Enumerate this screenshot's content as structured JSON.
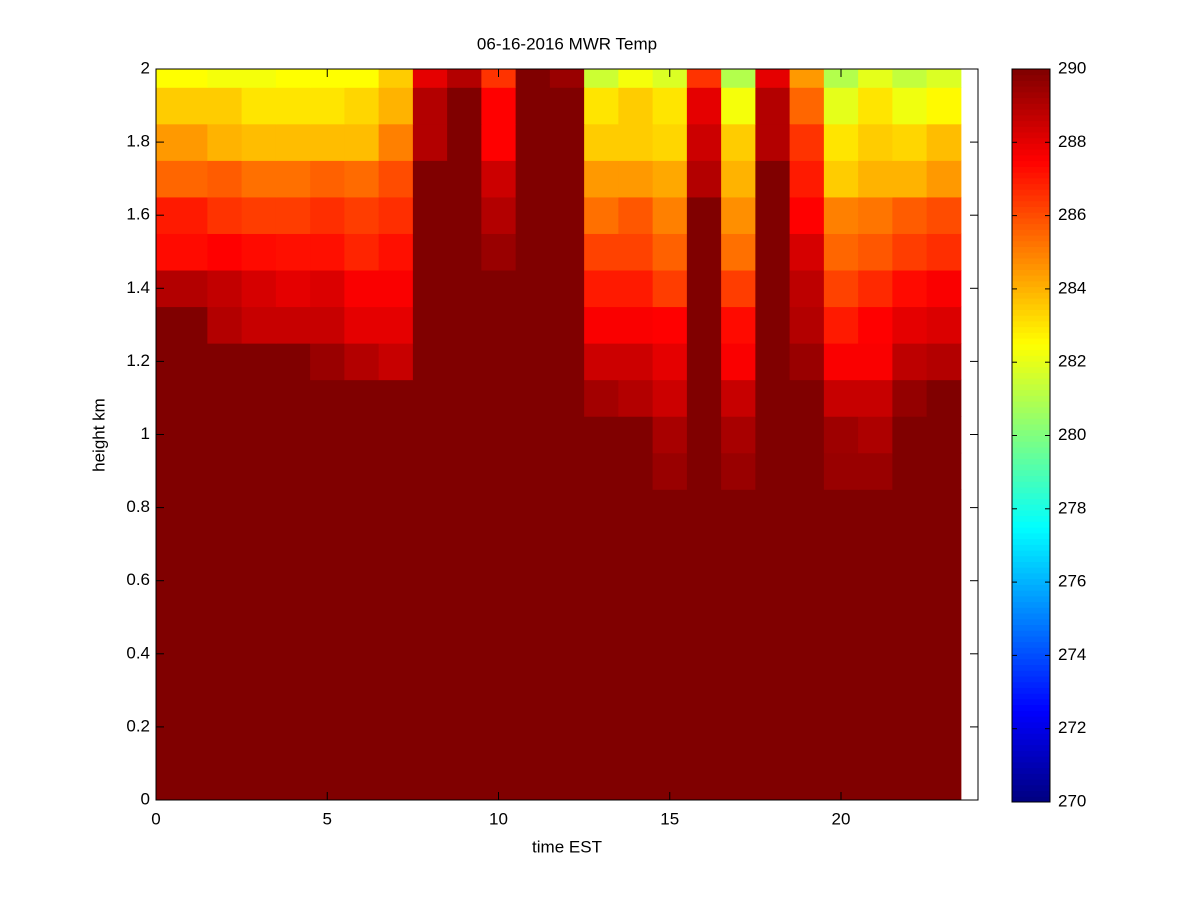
{
  "chart_data": {
    "type": "heatmap",
    "title": "06-16-2016 MWR Temp",
    "xlabel": "time EST",
    "ylabel": "height km",
    "colormap": "jet",
    "x_edges": [
      0,
      1.5,
      2.5,
      3.5,
      4.5,
      5.5,
      6.5,
      7.5,
      8.5,
      9.5,
      10.5,
      11.5,
      12.5,
      13.5,
      14.5,
      15.5,
      16.5,
      17.5,
      18.5,
      19.5,
      20.5,
      21.5,
      22.5,
      23.5
    ],
    "y_edges": [
      0,
      0.85,
      0.95,
      1.05,
      1.15,
      1.25,
      1.35,
      1.45,
      1.55,
      1.65,
      1.75,
      1.85,
      1.95,
      2
    ],
    "values": [
      [
        290,
        290,
        290,
        290,
        290,
        290,
        290,
        290,
        290,
        290,
        290,
        290,
        290,
        290,
        290,
        290,
        290,
        290,
        290,
        290,
        290,
        290,
        290
      ],
      [
        290,
        290,
        290,
        290,
        290,
        290,
        290,
        290,
        290,
        290,
        290,
        290,
        290,
        290,
        289.5,
        290,
        289.5,
        290,
        290,
        289.5,
        289.5,
        290,
        290
      ],
      [
        290,
        290,
        290,
        290,
        290,
        290,
        290,
        290,
        290,
        290,
        290,
        290,
        290,
        290,
        289.2,
        290,
        289.2,
        290,
        290,
        289.4,
        289.1,
        290,
        290
      ],
      [
        290,
        290,
        290,
        290,
        290,
        290,
        290,
        290,
        290,
        290,
        290,
        290,
        289.3,
        289,
        288.5,
        290,
        288.6,
        290,
        290,
        288.6,
        288.6,
        289.6,
        290
      ],
      [
        290,
        290,
        290,
        290,
        289.5,
        289,
        288.6,
        290,
        290,
        290,
        290,
        290,
        288.5,
        288.5,
        288,
        290,
        287.6,
        290,
        289.5,
        287.6,
        287.6,
        288.8,
        289
      ],
      [
        290,
        289,
        288.6,
        288.6,
        288.6,
        288,
        288,
        290,
        290,
        290,
        290,
        290,
        287.6,
        287.6,
        287.5,
        290,
        287.3,
        290,
        289,
        287,
        287.5,
        288,
        288.2
      ],
      [
        289,
        288.7,
        288.3,
        288,
        288.2,
        287.6,
        287.6,
        290,
        290,
        290,
        290,
        290,
        287,
        287,
        286.3,
        290,
        286.3,
        290,
        288.8,
        286.2,
        286.7,
        287.3,
        287.6
      ],
      [
        287.3,
        287.5,
        287.3,
        287.2,
        287.2,
        286.8,
        287.2,
        290,
        290,
        289.5,
        290,
        290,
        286.2,
        286.2,
        285.6,
        290,
        285.3,
        290,
        288.3,
        285.5,
        285.8,
        286.3,
        286.6
      ],
      [
        287,
        286.5,
        286.3,
        286.3,
        286.6,
        286.3,
        286.6,
        290,
        290,
        289,
        290,
        290,
        285.3,
        285.8,
        285,
        290,
        284.7,
        290,
        287.5,
        285,
        285.2,
        285.7,
        286
      ],
      [
        285.5,
        285.7,
        285.3,
        285.3,
        285.6,
        285.4,
        286,
        290,
        290,
        288.5,
        290,
        290,
        284.5,
        284.5,
        284.2,
        289,
        284,
        290,
        287,
        283.5,
        284,
        284,
        284.5
      ],
      [
        284.5,
        284,
        283.8,
        283.8,
        283.8,
        283.8,
        285,
        289,
        290,
        287.5,
        290,
        290,
        283.5,
        283.5,
        283.3,
        288.5,
        283.5,
        289,
        286.5,
        283,
        283.5,
        283.3,
        283.8
      ],
      [
        283.5,
        283.5,
        283,
        283,
        283,
        283.3,
        284,
        289,
        290,
        287.5,
        290,
        290,
        283,
        283.5,
        283,
        288,
        282.3,
        289,
        285.5,
        282,
        283,
        282.2,
        282.6
      ],
      [
        282.5,
        282.3,
        282.3,
        282.5,
        282.5,
        282.5,
        283.5,
        288,
        289,
        286.5,
        290,
        289.5,
        281.5,
        282.3,
        281.8,
        286.5,
        281,
        288,
        284.5,
        281,
        282,
        281.3,
        281.8
      ]
    ],
    "xlim": [
      0,
      24
    ],
    "xticks": [
      0,
      5,
      10,
      15,
      20
    ],
    "ylim": [
      0,
      2
    ],
    "yticks": [
      0,
      0.2,
      0.4,
      0.6,
      0.8,
      1,
      1.2,
      1.4,
      1.6,
      1.8,
      2
    ],
    "clim": [
      270,
      290
    ],
    "colorbar_ticks": [
      270,
      272,
      274,
      276,
      278,
      280,
      282,
      284,
      286,
      288,
      290
    ]
  }
}
